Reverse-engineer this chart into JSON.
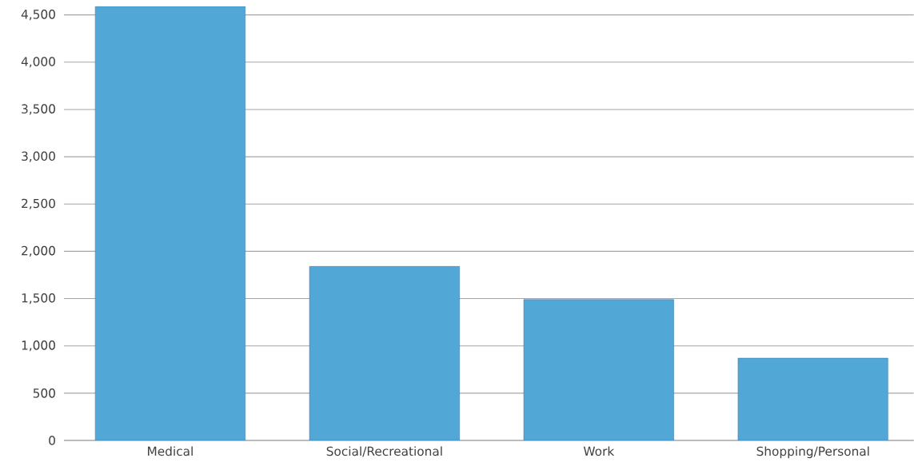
{
  "chart_data": {
    "type": "bar",
    "categories": [
      "Medical",
      "Social/Recreational",
      "Work",
      "Shopping/Personal"
    ],
    "values": [
      4590,
      1840,
      1490,
      870
    ],
    "color": "#51a8d6",
    "ylim": [
      0,
      4590
    ],
    "yticks": [
      {
        "value": 0,
        "label": "0"
      },
      {
        "value": 500,
        "label": "500"
      },
      {
        "value": 1000,
        "label": "1,000"
      },
      {
        "value": 1500,
        "label": "1,500"
      },
      {
        "value": 2000,
        "label": "2,000"
      },
      {
        "value": 2500,
        "label": "2,500"
      },
      {
        "value": 3000,
        "label": "3,000"
      },
      {
        "value": 3500,
        "label": "3,500"
      },
      {
        "value": 4000,
        "label": "4,000"
      },
      {
        "value": 4500,
        "label": "4,500"
      }
    ],
    "grid": "y"
  }
}
